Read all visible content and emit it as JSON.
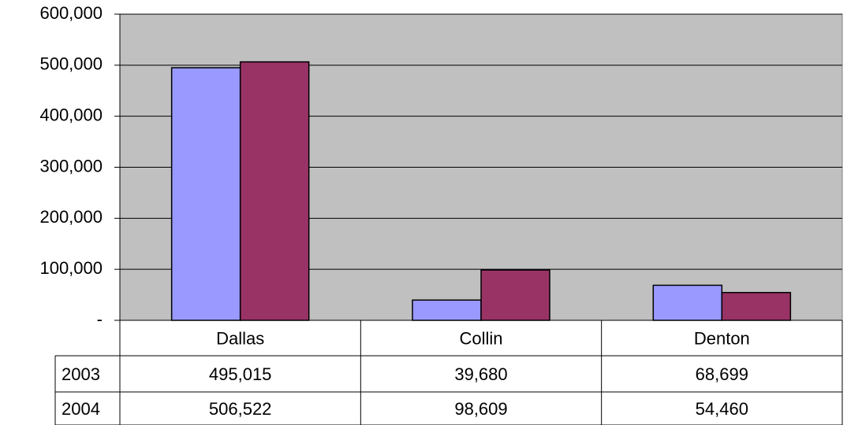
{
  "chart_data": {
    "type": "bar",
    "categories": [
      "Dallas",
      "Collin",
      "Denton"
    ],
    "series": [
      {
        "name": "2003",
        "color": "#9999ff",
        "values": [
          495015,
          39680,
          68699
        ],
        "value_labels": [
          "495,015",
          "39,680",
          "68,699"
        ]
      },
      {
        "name": "2004",
        "color": "#993366",
        "values": [
          506522,
          98609,
          54460
        ],
        "value_labels": [
          "506,522",
          "98,609",
          "54,460"
        ]
      }
    ],
    "ylim": [
      0,
      600000
    ],
    "yticks": [
      {
        "value": 0,
        "label": "-"
      },
      {
        "value": 100000,
        "label": "100,000"
      },
      {
        "value": 200000,
        "label": "200,000"
      },
      {
        "value": 300000,
        "label": "300,000"
      },
      {
        "value": 400000,
        "label": "400,000"
      },
      {
        "value": 500000,
        "label": "500,000"
      },
      {
        "value": 600000,
        "label": "600,000"
      }
    ],
    "grid": true,
    "plot_background": "#c0c0c0"
  }
}
